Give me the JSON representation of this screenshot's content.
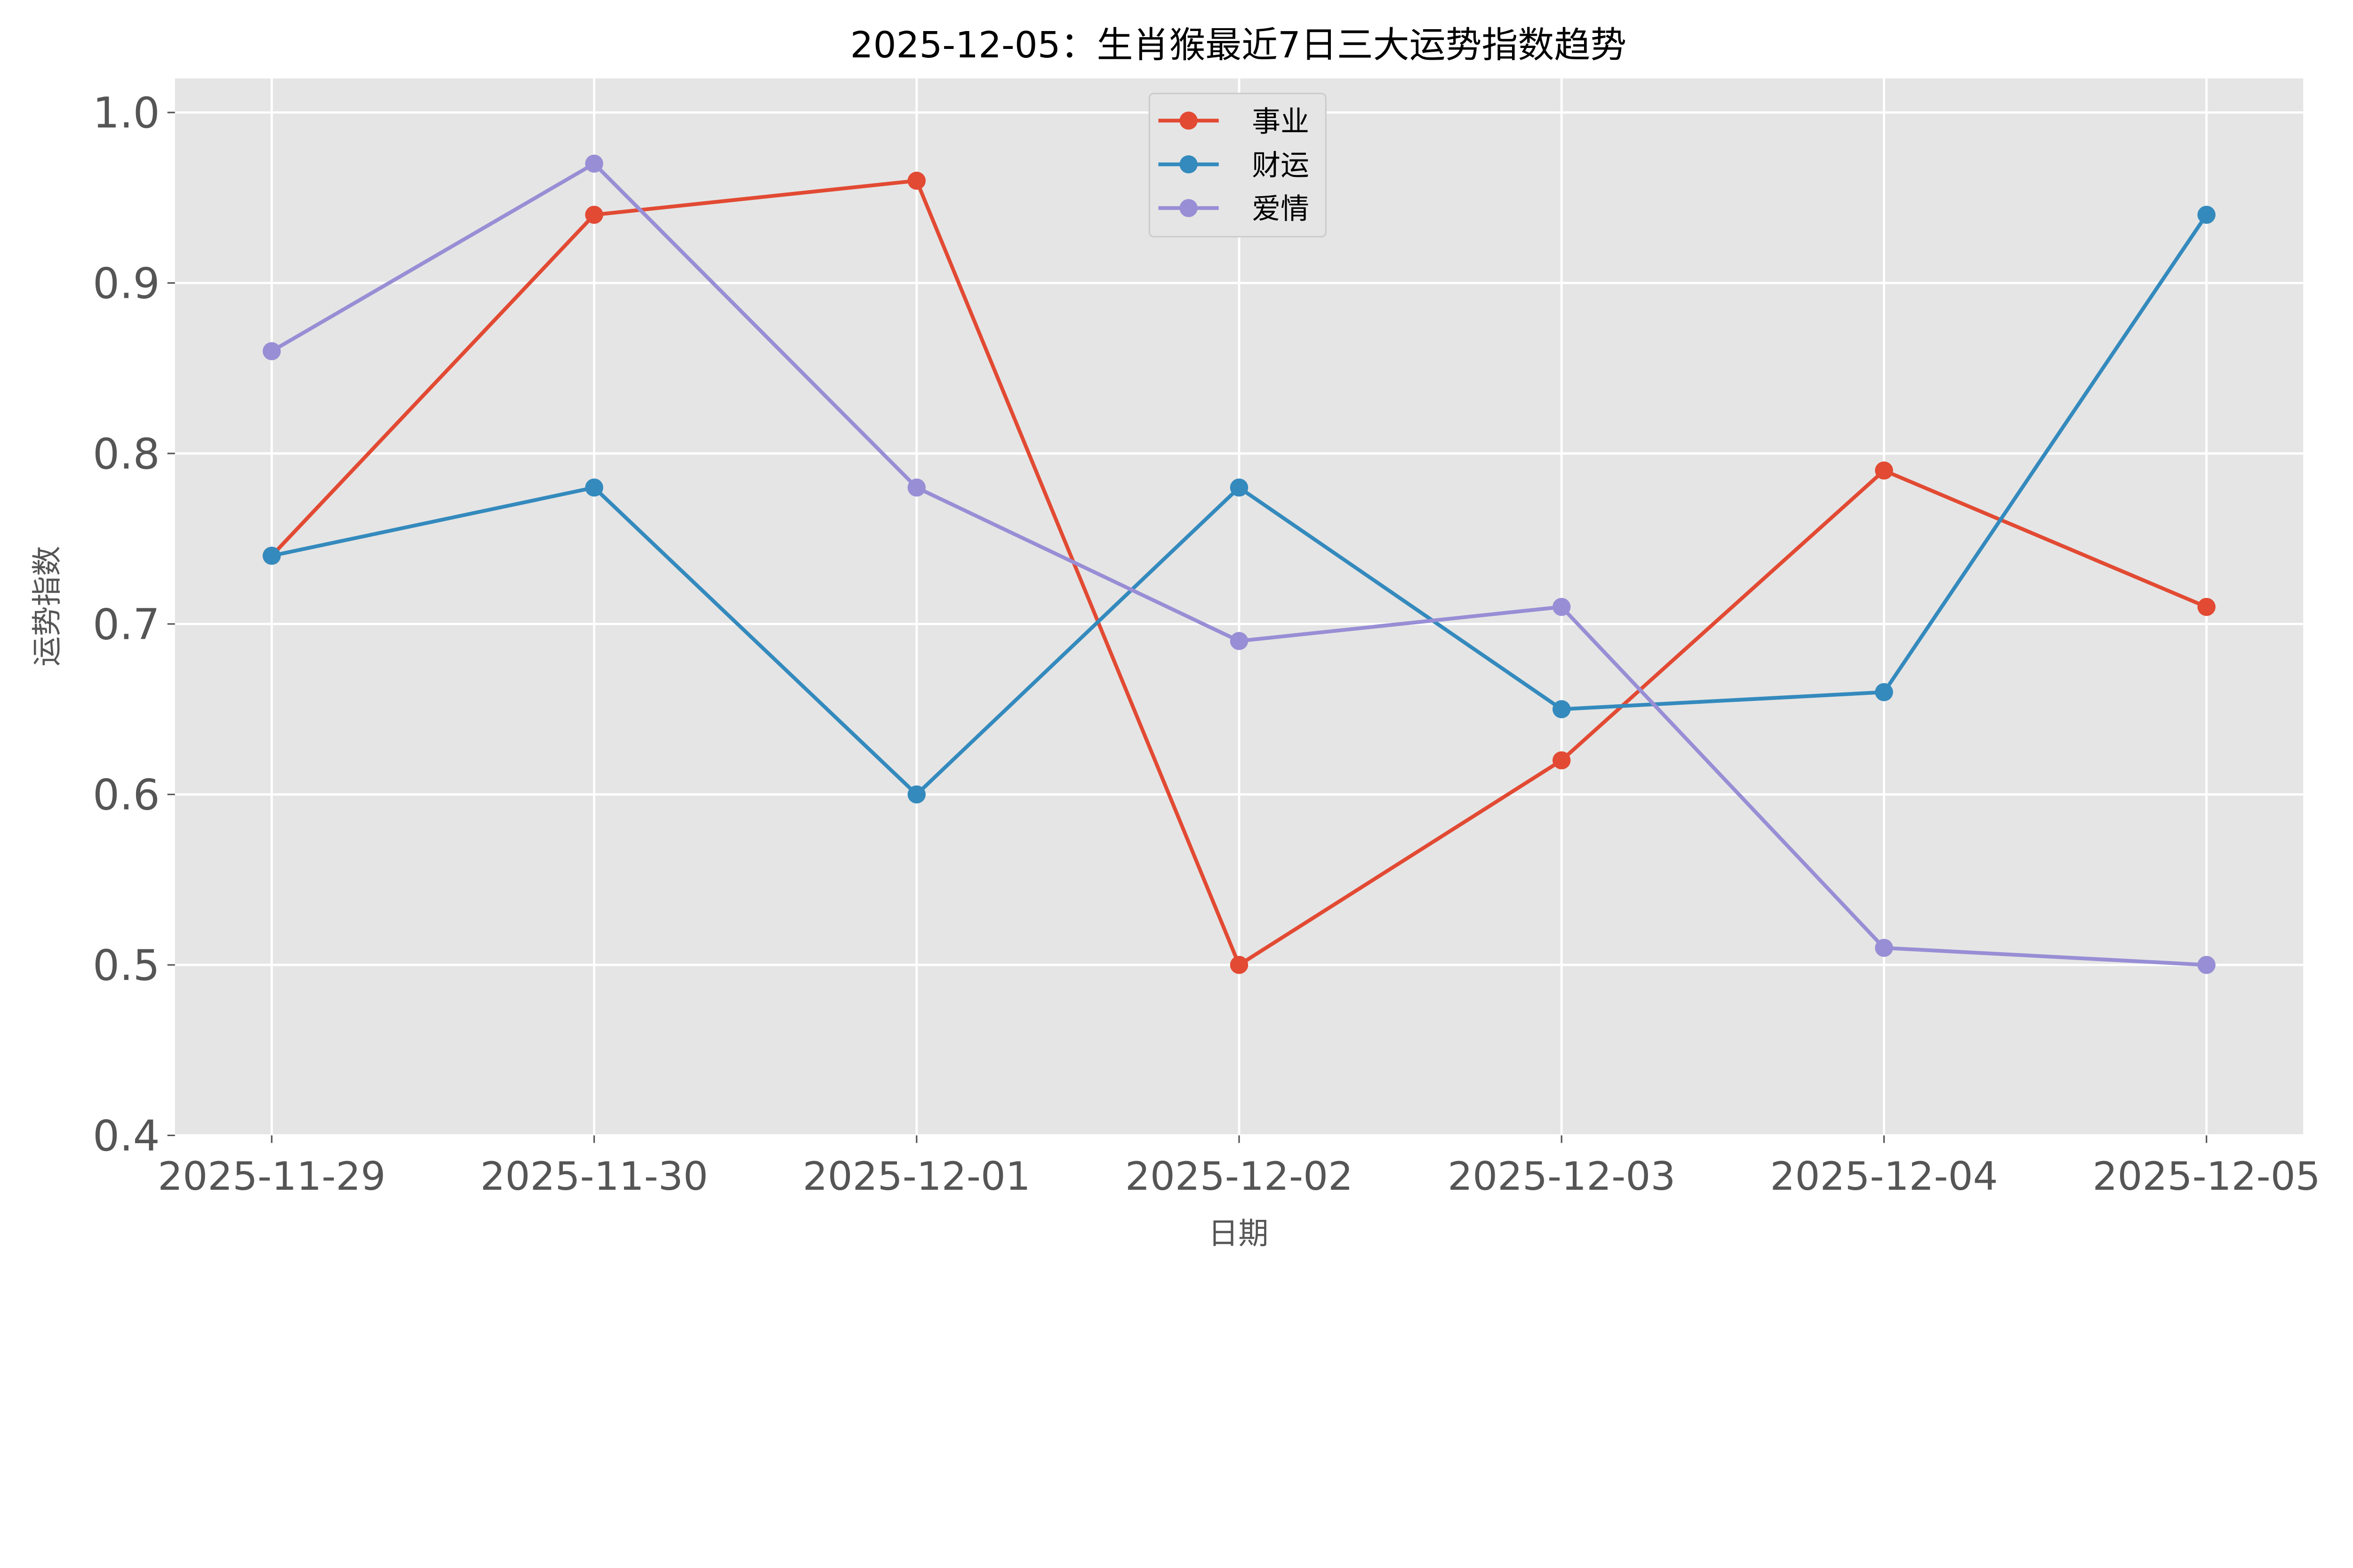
{
  "chart_data": {
    "type": "line",
    "title": "2025-12-05：生肖猴最近7日三大运势指数趋势",
    "xlabel": "日期",
    "ylabel": "运势指数",
    "categories": [
      "2025-11-29",
      "2025-11-30",
      "2025-12-01",
      "2025-12-02",
      "2025-12-03",
      "2025-12-04",
      "2025-12-05"
    ],
    "ylim": [
      0.4,
      1.02
    ],
    "yticks": [
      0.4,
      0.5,
      0.6,
      0.7,
      0.8,
      0.9,
      1.0
    ],
    "ytick_labels": [
      "0.4",
      "0.5",
      "0.6",
      "0.7",
      "0.8",
      "0.9",
      "1.0"
    ],
    "grid": true,
    "legend_placement": "upper-center",
    "background": "#e5e5e5",
    "series": [
      {
        "name": "事业",
        "color": "#e24a33",
        "values": [
          0.74,
          0.94,
          0.96,
          0.5,
          0.62,
          0.79,
          0.71
        ]
      },
      {
        "name": "财运",
        "color": "#348abd",
        "values": [
          0.74,
          0.78,
          0.6,
          0.78,
          0.65,
          0.66,
          0.94
        ]
      },
      {
        "name": "爱情",
        "color": "#988ed5",
        "values": [
          0.86,
          0.97,
          0.78,
          0.69,
          0.71,
          0.51,
          0.5
        ]
      }
    ]
  }
}
